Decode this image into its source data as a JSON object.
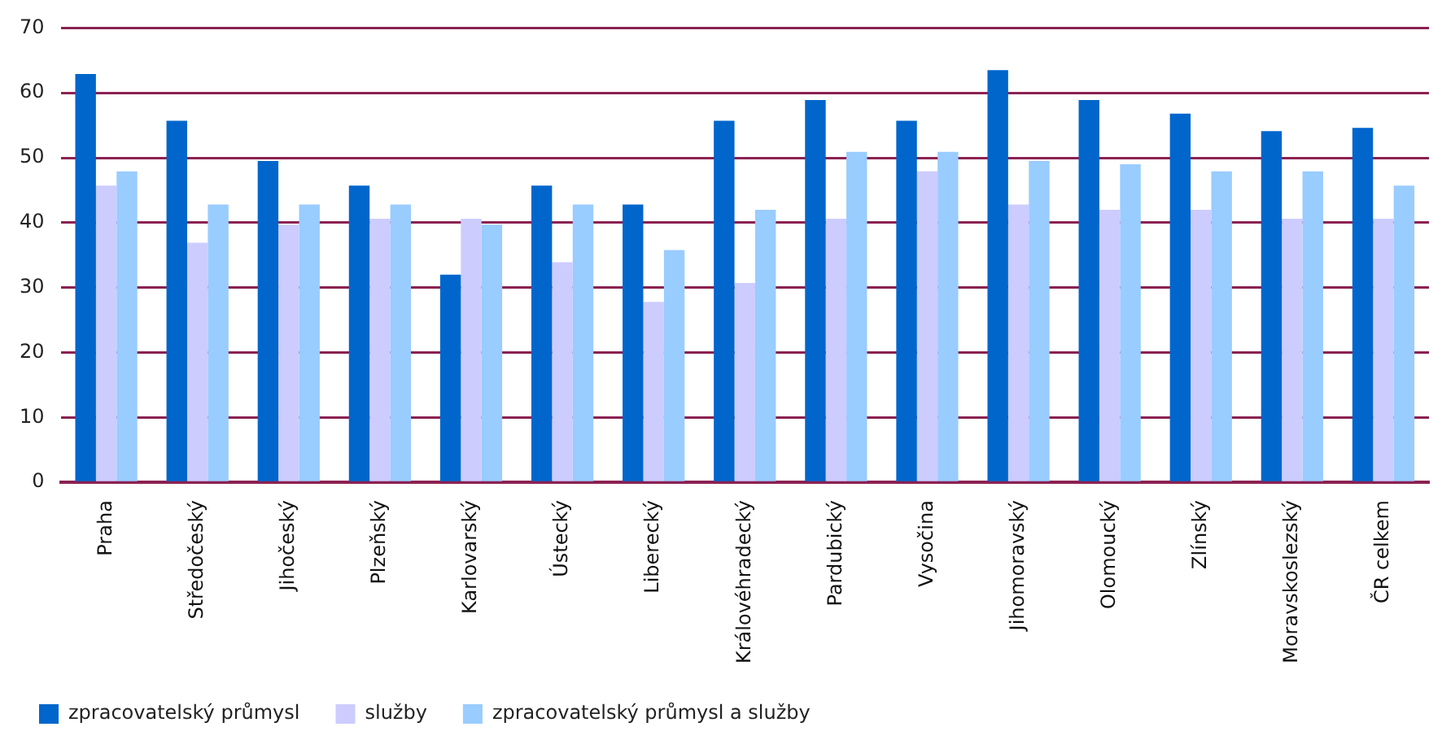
{
  "chart_data": {
    "type": "bar",
    "categories": [
      "Praha",
      "Středočeský",
      "Jihočeský",
      "Plzeňský",
      "Karlovarský",
      "Ústecký",
      "Liberecký",
      "Královéhradecký",
      "Pardubický",
      "Vysočina",
      "Jihomoravský",
      "Olomoucký",
      "Zlínský",
      "Moravskoslezský",
      "ČR celkem"
    ],
    "series": [
      {
        "name": "zpracovatelský průmysl",
        "color": "#0066cc",
        "values": [
          62.9,
          55.7,
          49.5,
          45.7,
          32.0,
          45.7,
          42.8,
          55.7,
          58.9,
          55.7,
          63.5,
          58.9,
          56.8,
          54.1,
          54.6
        ]
      },
      {
        "name": "služby",
        "color": "#ccccff",
        "values": [
          45.7,
          36.9,
          39.7,
          40.6,
          40.6,
          33.9,
          27.8,
          30.7,
          40.6,
          47.9,
          42.8,
          42.0,
          42.0,
          40.6,
          40.6
        ]
      },
      {
        "name": "zpracovatelský průmysl a služby",
        "color": "#99ccff",
        "values": [
          47.9,
          42.8,
          42.8,
          42.8,
          39.7,
          42.8,
          35.8,
          42.0,
          50.9,
          50.9,
          49.5,
          49.0,
          47.9,
          47.9,
          45.7
        ]
      }
    ],
    "ylim": [
      0,
      70
    ],
    "yticks": [
      0,
      10,
      20,
      30,
      40,
      50,
      60,
      70
    ],
    "grid": "y",
    "legend": "bottom left"
  }
}
